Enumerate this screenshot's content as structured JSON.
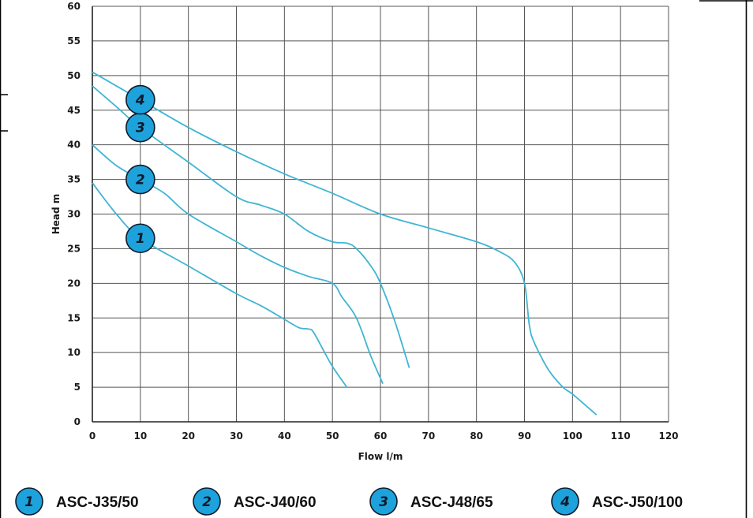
{
  "chart_data": {
    "type": "line",
    "xlabel": "Flow l/m",
    "ylabel": "Head m",
    "xlim": [
      0,
      120
    ],
    "ylim": [
      0,
      60
    ],
    "x_ticks": [
      0,
      10,
      20,
      30,
      40,
      50,
      60,
      70,
      80,
      90,
      100,
      110,
      120
    ],
    "y_ticks": [
      0,
      5,
      10,
      15,
      20,
      25,
      30,
      35,
      40,
      45,
      50,
      55,
      60
    ],
    "grid": true,
    "line_color": "#3fb5d3",
    "badge_color": "#1ea2dc",
    "series": [
      {
        "name": "ASC-J35/50",
        "badge": "1",
        "x": [
          0,
          5,
          10,
          20,
          30,
          35,
          40,
          43,
          45,
          46,
          48,
          50,
          53
        ],
        "y": [
          34.5,
          30,
          26.5,
          22.5,
          18.5,
          16.8,
          14.8,
          13.6,
          13.4,
          13,
          10.5,
          8,
          5
        ]
      },
      {
        "name": "ASC-J40/60",
        "badge": "2",
        "x": [
          0,
          5,
          10,
          15,
          20,
          30,
          35,
          40,
          45,
          50,
          52,
          55,
          58,
          60.5
        ],
        "y": [
          40,
          37,
          35,
          33,
          30,
          26,
          24,
          22.3,
          21,
          20,
          18,
          15,
          9.5,
          5.5
        ]
      },
      {
        "name": "ASC-J48/65",
        "badge": "3",
        "x": [
          0,
          5,
          10,
          20,
          30,
          35,
          40,
          45,
          50,
          53,
          55,
          58,
          60,
          63,
          66
        ],
        "y": [
          48.5,
          45.5,
          42.5,
          37.5,
          32.5,
          31.3,
          30,
          27.5,
          26,
          25.8,
          25,
          22.5,
          20,
          14.5,
          7.8
        ]
      },
      {
        "name": "ASC-J50/100",
        "badge": "4",
        "x": [
          0,
          10,
          20,
          30,
          40,
          50,
          60,
          70,
          80,
          85,
          88,
          90,
          91,
          92,
          95,
          98,
          100,
          105
        ],
        "y": [
          50.5,
          46.5,
          42.5,
          39,
          35.8,
          33,
          30,
          28,
          26,
          24.5,
          23,
          20,
          14,
          11.5,
          7.5,
          5,
          4,
          1
        ]
      }
    ]
  }
}
